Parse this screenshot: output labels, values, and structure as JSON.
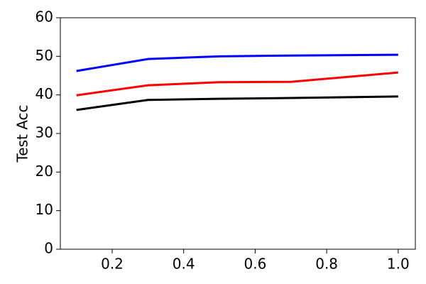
{
  "chart_data": {
    "type": "line",
    "y_label": "Test Acc",
    "x": [
      0.1,
      0.3,
      0.5,
      0.7,
      1.0
    ],
    "series": [
      {
        "color": "#0000ff",
        "values": [
          46.2,
          49.3,
          50.0,
          50.2,
          50.4
        ]
      },
      {
        "color": "#ff0000",
        "values": [
          39.9,
          42.5,
          43.3,
          43.4,
          45.8
        ]
      },
      {
        "color": "#000000",
        "values": [
          36.1,
          38.7,
          39.0,
          39.2,
          39.6
        ]
      }
    ],
    "xlim": [
      0.055,
      1.048
    ],
    "xticks": [
      {
        "value": 0.2,
        "label": "0.2"
      },
      {
        "value": 0.4,
        "label": "0.4"
      },
      {
        "value": 0.6,
        "label": "0.6"
      },
      {
        "value": 0.8,
        "label": "0.8"
      },
      {
        "value": 1.0,
        "label": "1.0"
      }
    ],
    "ylim": [
      0,
      60
    ],
    "yticks": [
      0,
      10,
      20,
      30,
      40,
      50,
      60
    ]
  }
}
